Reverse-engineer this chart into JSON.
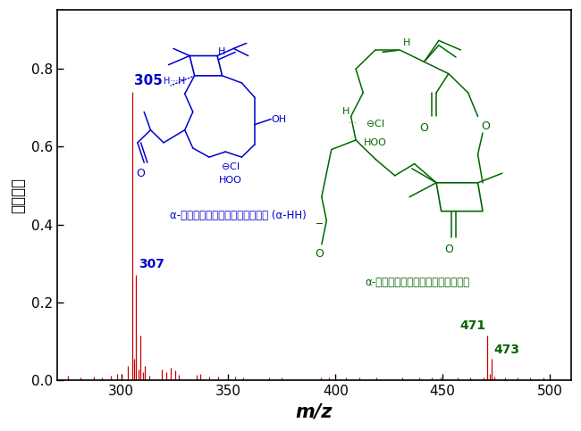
{
  "xlabel": "m/z",
  "ylabel": "信号強度",
  "xlim": [
    270,
    510
  ],
  "ylim": [
    0.0,
    0.95
  ],
  "yticks": [
    0.0,
    0.2,
    0.4,
    0.6,
    0.8
  ],
  "xticks": [
    300,
    350,
    400,
    450,
    500
  ],
  "background_color": "#ffffff",
  "peaks": [
    [
      275,
      0.012
    ],
    [
      281,
      0.009
    ],
    [
      287,
      0.011
    ],
    [
      291,
      0.008
    ],
    [
      295,
      0.013
    ],
    [
      298,
      0.016
    ],
    [
      300,
      0.011
    ],
    [
      303,
      0.038
    ],
    [
      305,
      0.74
    ],
    [
      306,
      0.055
    ],
    [
      307,
      0.27
    ],
    [
      308,
      0.028
    ],
    [
      309,
      0.115
    ],
    [
      310,
      0.022
    ],
    [
      311,
      0.038
    ],
    [
      313,
      0.012
    ],
    [
      319,
      0.028
    ],
    [
      321,
      0.022
    ],
    [
      323,
      0.032
    ],
    [
      325,
      0.027
    ],
    [
      327,
      0.014
    ],
    [
      335,
      0.014
    ],
    [
      337,
      0.017
    ],
    [
      341,
      0.01
    ],
    [
      345,
      0.011
    ],
    [
      353,
      0.01
    ],
    [
      357,
      0.009
    ],
    [
      369,
      0.008
    ],
    [
      375,
      0.008
    ],
    [
      393,
      0.009
    ],
    [
      397,
      0.009
    ],
    [
      405,
      0.008
    ],
    [
      411,
      0.008
    ],
    [
      419,
      0.009
    ],
    [
      431,
      0.008
    ],
    [
      439,
      0.008
    ],
    [
      445,
      0.009
    ],
    [
      449,
      0.009
    ],
    [
      457,
      0.008
    ],
    [
      463,
      0.008
    ],
    [
      469,
      0.008
    ],
    [
      471,
      0.115
    ],
    [
      472,
      0.018
    ],
    [
      473,
      0.055
    ],
    [
      474,
      0.01
    ],
    [
      479,
      0.008
    ],
    [
      485,
      0.008
    ],
    [
      491,
      0.008
    ],
    [
      497,
      0.008
    ]
  ],
  "peak_color": "#cc0000",
  "label_305": {
    "mz": 305,
    "intensity": 0.74,
    "text": "305",
    "color": "#0000cc"
  },
  "label_307": {
    "mz": 307,
    "intensity": 0.27,
    "text": "307",
    "color": "#0000cc"
  },
  "label_471": {
    "mz": 471,
    "intensity": 0.115,
    "text": "471",
    "color": "#006600"
  },
  "label_473": {
    "mz": 473,
    "intensity": 0.055,
    "text": "473",
    "color": "#006600"
  },
  "compound1_text": "α-ヒドロキシヒドロペルオキシド (α-HH)",
  "compound1_color": "#0000cc",
  "compound2_text": "α-アシルオキシヒドロペルオキシド",
  "compound2_color": "#006600",
  "struct1_color": "#0000cc",
  "struct2_color": "#006600"
}
